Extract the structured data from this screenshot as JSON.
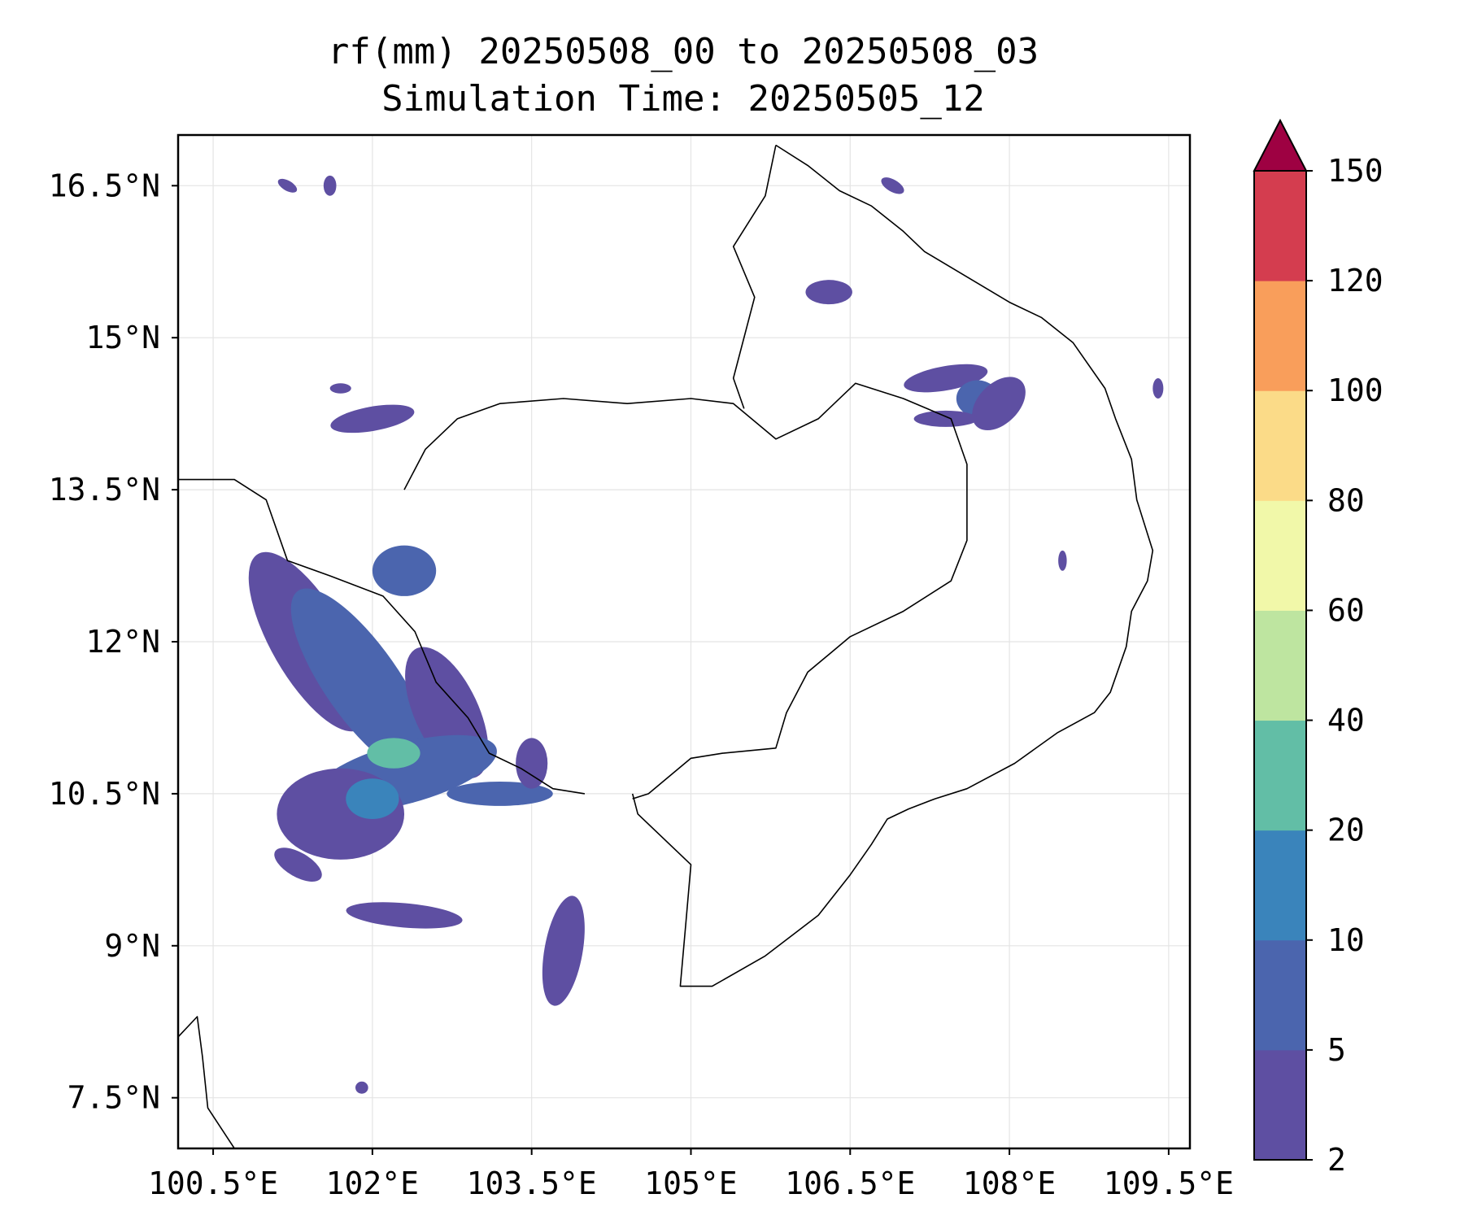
{
  "title": {
    "line1": "rf(mm) 20250508_00 to 20250508_03",
    "line2": "Simulation Time: 20250505_12"
  },
  "map": {
    "extent": {
      "lon": [
        100.17,
        109.7
      ],
      "lat": [
        7.0,
        17.0
      ]
    },
    "lon_ticks": [
      {
        "value": 100.5,
        "label": "100.5°E"
      },
      {
        "value": 102,
        "label": "102°E"
      },
      {
        "value": 103.5,
        "label": "103.5°E"
      },
      {
        "value": 105,
        "label": "105°E"
      },
      {
        "value": 106.5,
        "label": "106.5°E"
      },
      {
        "value": 108,
        "label": "108°E"
      },
      {
        "value": 109.5,
        "label": "109.5°E"
      }
    ],
    "lat_ticks": [
      {
        "value": 7.5,
        "label": "7.5°N"
      },
      {
        "value": 9,
        "label": "9°N"
      },
      {
        "value": 10.5,
        "label": "10.5°N"
      },
      {
        "value": 12,
        "label": "12°N"
      },
      {
        "value": 13.5,
        "label": "13.5°N"
      },
      {
        "value": 15,
        "label": "15°N"
      },
      {
        "value": 16.5,
        "label": "16.5°N"
      }
    ],
    "gridlines": true,
    "colorbar": {
      "levels": [
        "2",
        "5",
        "10",
        "20",
        "40",
        "60",
        "80",
        "100",
        "120",
        "150"
      ],
      "colors": [
        "#5e4fa2",
        "#4b65ae",
        "#3a84bb",
        "#62bea6",
        "#bee5a0",
        "#f1f8a9",
        "#fbdb88",
        "#f99e5b",
        "#d43d4f"
      ],
      "extend_color": "#9e0142",
      "extend": "max"
    },
    "rain_patches": [
      {
        "lon": 101.4,
        "lat": 12.0,
        "rx": 0.35,
        "ry": 1.0,
        "rot": -30,
        "level": 0
      },
      {
        "lon": 101.9,
        "lat": 11.6,
        "rx": 0.35,
        "ry": 1.1,
        "rot": -35,
        "level": 1
      },
      {
        "lon": 102.7,
        "lat": 11.3,
        "rx": 0.3,
        "ry": 0.7,
        "rot": -25,
        "level": 0
      },
      {
        "lon": 102.3,
        "lat": 10.7,
        "rx": 0.9,
        "ry": 0.3,
        "rot": -15,
        "level": 1
      },
      {
        "lon": 102.2,
        "lat": 10.9,
        "rx": 0.25,
        "ry": 0.15,
        "rot": 0,
        "level": 3
      },
      {
        "lon": 101.7,
        "lat": 10.3,
        "rx": 0.6,
        "ry": 0.45,
        "rot": 0,
        "level": 0
      },
      {
        "lon": 102.0,
        "lat": 10.45,
        "rx": 0.25,
        "ry": 0.2,
        "rot": 0,
        "level": 2
      },
      {
        "lon": 102.3,
        "lat": 9.3,
        "rx": 0.55,
        "ry": 0.12,
        "rot": 5,
        "level": 0
      },
      {
        "lon": 103.8,
        "lat": 8.95,
        "rx": 0.18,
        "ry": 0.55,
        "rot": 10,
        "level": 0
      },
      {
        "lon": 101.3,
        "lat": 9.8,
        "rx": 0.25,
        "ry": 0.12,
        "rot": 30,
        "level": 0
      },
      {
        "lon": 103.2,
        "lat": 10.5,
        "rx": 0.5,
        "ry": 0.12,
        "rot": 0,
        "level": 1
      },
      {
        "lon": 103.5,
        "lat": 10.8,
        "rx": 0.15,
        "ry": 0.25,
        "rot": 0,
        "level": 0
      },
      {
        "lon": 102.0,
        "lat": 14.2,
        "rx": 0.4,
        "ry": 0.12,
        "rot": -10,
        "level": 0
      },
      {
        "lon": 102.3,
        "lat": 12.7,
        "rx": 0.3,
        "ry": 0.25,
        "rot": 0,
        "level": 1
      },
      {
        "lon": 106.3,
        "lat": 15.45,
        "rx": 0.22,
        "ry": 0.12,
        "rot": 0,
        "level": 0
      },
      {
        "lon": 107.4,
        "lat": 14.6,
        "rx": 0.4,
        "ry": 0.12,
        "rot": -10,
        "level": 0
      },
      {
        "lon": 107.7,
        "lat": 14.4,
        "rx": 0.2,
        "ry": 0.18,
        "rot": 0,
        "level": 1
      },
      {
        "lon": 107.9,
        "lat": 14.35,
        "rx": 0.3,
        "ry": 0.2,
        "rot": -45,
        "level": 0
      },
      {
        "lon": 107.4,
        "lat": 14.2,
        "rx": 0.3,
        "ry": 0.08,
        "rot": 0,
        "level": 0
      },
      {
        "lon": 108.5,
        "lat": 12.8,
        "rx": 0.04,
        "ry": 0.1,
        "rot": 0,
        "level": 0
      },
      {
        "lon": 106.9,
        "lat": 16.5,
        "rx": 0.12,
        "ry": 0.06,
        "rot": 30,
        "level": 0
      },
      {
        "lon": 101.2,
        "lat": 16.5,
        "rx": 0.1,
        "ry": 0.05,
        "rot": 30,
        "level": 0
      },
      {
        "lon": 101.6,
        "lat": 16.5,
        "rx": 0.06,
        "ry": 0.1,
        "rot": 0,
        "level": 0
      },
      {
        "lon": 101.9,
        "lat": 7.6,
        "rx": 0.06,
        "ry": 0.06,
        "rot": 0,
        "level": 0
      },
      {
        "lon": 101.7,
        "lat": 14.5,
        "rx": 0.1,
        "ry": 0.05,
        "rot": 0,
        "level": 0
      },
      {
        "lon": 109.4,
        "lat": 14.5,
        "rx": 0.05,
        "ry": 0.1,
        "rot": 0,
        "level": 0
      }
    ],
    "boundaries": [
      {
        "name": "vietnam-coastline",
        "points": [
          [
            105.8,
            16.9
          ],
          [
            106.1,
            16.7
          ],
          [
            106.4,
            16.45
          ],
          [
            106.7,
            16.3
          ],
          [
            107.0,
            16.05
          ],
          [
            107.2,
            15.85
          ],
          [
            107.6,
            15.6
          ],
          [
            108.0,
            15.35
          ],
          [
            108.3,
            15.2
          ],
          [
            108.6,
            14.95
          ],
          [
            108.9,
            14.5
          ],
          [
            109.0,
            14.2
          ],
          [
            109.15,
            13.8
          ],
          [
            109.2,
            13.4
          ],
          [
            109.35,
            12.9
          ],
          [
            109.3,
            12.6
          ],
          [
            109.15,
            12.3
          ],
          [
            109.1,
            11.95
          ],
          [
            108.95,
            11.5
          ],
          [
            108.8,
            11.3
          ],
          [
            108.45,
            11.1
          ],
          [
            108.05,
            10.8
          ],
          [
            107.6,
            10.55
          ],
          [
            107.3,
            10.45
          ],
          [
            107.05,
            10.35
          ],
          [
            106.85,
            10.25
          ],
          [
            106.7,
            10.0
          ],
          [
            106.5,
            9.7
          ],
          [
            106.2,
            9.3
          ],
          [
            105.7,
            8.9
          ],
          [
            105.2,
            8.6
          ],
          [
            104.9,
            8.6
          ],
          [
            104.95,
            9.2
          ],
          [
            105.0,
            9.8
          ],
          [
            104.5,
            10.3
          ],
          [
            104.45,
            10.5
          ]
        ]
      },
      {
        "name": "cambodia-border",
        "points": [
          [
            102.3,
            13.5
          ],
          [
            102.5,
            13.9
          ],
          [
            102.8,
            14.2
          ],
          [
            103.2,
            14.35
          ],
          [
            103.8,
            14.4
          ],
          [
            104.4,
            14.35
          ],
          [
            105.0,
            14.4
          ],
          [
            105.4,
            14.35
          ],
          [
            105.8,
            14.0
          ],
          [
            106.2,
            14.2
          ],
          [
            106.55,
            14.55
          ],
          [
            107.0,
            14.4
          ],
          [
            107.45,
            14.2
          ],
          [
            107.6,
            13.75
          ],
          [
            107.6,
            13.0
          ],
          [
            107.45,
            12.6
          ],
          [
            107.0,
            12.3
          ],
          [
            106.5,
            12.05
          ],
          [
            106.1,
            11.7
          ],
          [
            105.9,
            11.3
          ],
          [
            105.8,
            10.95
          ],
          [
            105.3,
            10.9
          ],
          [
            105.0,
            10.85
          ],
          [
            104.6,
            10.5
          ],
          [
            104.45,
            10.45
          ]
        ]
      },
      {
        "name": "laos-border",
        "points": [
          [
            105.8,
            16.9
          ],
          [
            105.7,
            16.4
          ],
          [
            105.4,
            15.9
          ],
          [
            105.6,
            15.4
          ],
          [
            105.4,
            14.6
          ],
          [
            105.5,
            14.3
          ]
        ]
      },
      {
        "name": "thailand-coast",
        "points": [
          [
            100.17,
            13.6
          ],
          [
            100.7,
            13.6
          ],
          [
            101.0,
            13.4
          ],
          [
            101.2,
            12.8
          ],
          [
            101.6,
            12.65
          ],
          [
            102.1,
            12.45
          ],
          [
            102.4,
            12.1
          ],
          [
            102.6,
            11.6
          ],
          [
            102.9,
            11.25
          ],
          [
            103.1,
            10.9
          ],
          [
            103.4,
            10.75
          ],
          [
            103.7,
            10.55
          ],
          [
            104.0,
            10.5
          ]
        ]
      },
      {
        "name": "malay-coast",
        "points": [
          [
            100.17,
            8.1
          ],
          [
            100.35,
            8.3
          ],
          [
            100.4,
            7.9
          ],
          [
            100.45,
            7.4
          ],
          [
            100.7,
            7.0
          ]
        ]
      }
    ]
  }
}
